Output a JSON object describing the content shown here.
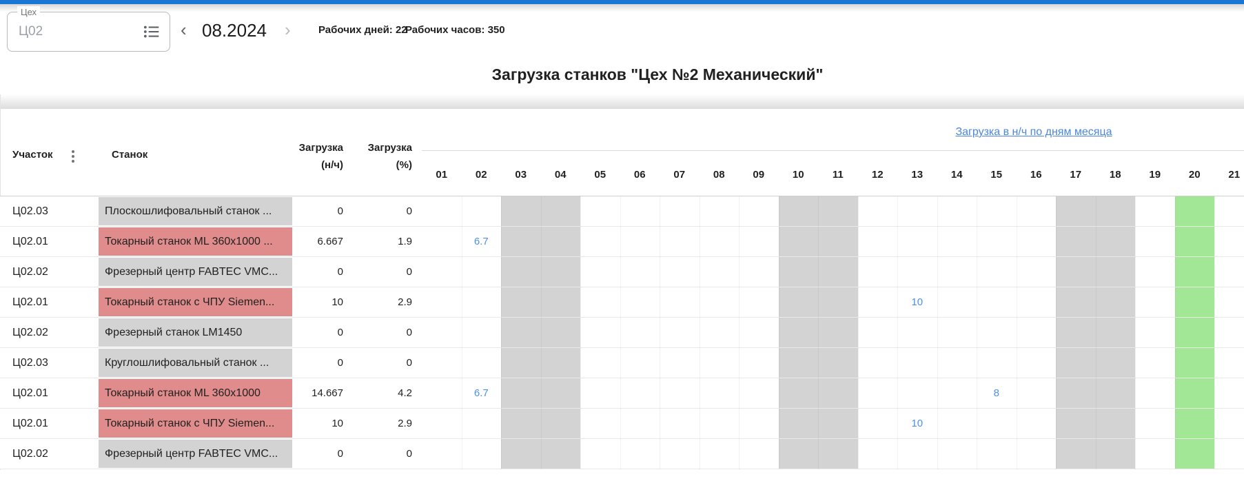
{
  "filter": {
    "label": "Цех",
    "value": "Ц02"
  },
  "toolbar": {
    "prev_icon": "‹",
    "next_icon": "›",
    "month": "08.2024",
    "working_days": "Рабочих дней: 22",
    "working_hours": "Рабочих часов: 350"
  },
  "title": "Загрузка станков \"Цех №2 Механический\"",
  "table": {
    "headers": {
      "section": "Участок",
      "machine": "Станок",
      "load_nh_line1": "Загрузка",
      "load_nh_line2": "(н/ч)",
      "load_pct_line1": "Загрузка",
      "load_pct_line2": "(%)"
    },
    "days_link": "Загрузка в н/ч по дням месяца",
    "days": [
      "01",
      "02",
      "03",
      "04",
      "05",
      "06",
      "07",
      "08",
      "09",
      "10",
      "11",
      "12",
      "13",
      "14",
      "15",
      "16",
      "17",
      "18",
      "19",
      "20",
      "21"
    ],
    "weekend_days": [
      "03",
      "04",
      "10",
      "11",
      "17",
      "18"
    ],
    "today_day": "20",
    "rows": [
      {
        "section": "Ц02.03",
        "machine": "Плоскошлифовальный станок ...",
        "status": "idle",
        "load_nh": "0",
        "load_pct": "0",
        "day_values": {}
      },
      {
        "section": "Ц02.01",
        "machine": "Токарный станок ML 360x1000 ...",
        "status": "loaded",
        "load_nh": "6.667",
        "load_pct": "1.9",
        "day_values": {
          "02": "6.7"
        }
      },
      {
        "section": "Ц02.02",
        "machine": "Фрезерный центр FABTEC VMC...",
        "status": "idle",
        "load_nh": "0",
        "load_pct": "0",
        "day_values": {}
      },
      {
        "section": "Ц02.01",
        "machine": "Токарный станок с ЧПУ Siemen...",
        "status": "loaded",
        "load_nh": "10",
        "load_pct": "2.9",
        "day_values": {
          "13": "10"
        }
      },
      {
        "section": "Ц02.02",
        "machine": "Фрезерный станок LM1450",
        "status": "idle",
        "load_nh": "0",
        "load_pct": "0",
        "day_values": {}
      },
      {
        "section": "Ц02.03",
        "machine": "Круглошлифовальный станок ...",
        "status": "idle",
        "load_nh": "0",
        "load_pct": "0",
        "day_values": {}
      },
      {
        "section": "Ц02.01",
        "machine": "Токарный станок ML 360x1000",
        "status": "loaded",
        "load_nh": "14.667",
        "load_pct": "4.2",
        "day_values": {
          "02": "6.7",
          "15": "8"
        }
      },
      {
        "section": "Ц02.01",
        "machine": "Токарный станок с ЧПУ Siemen...",
        "status": "loaded",
        "load_nh": "10",
        "load_pct": "2.9",
        "day_values": {
          "13": "10"
        }
      },
      {
        "section": "Ц02.02",
        "machine": "Фрезерный центр FABTEC VMC...",
        "status": "idle",
        "load_nh": "0",
        "load_pct": "0",
        "day_values": {}
      }
    ]
  },
  "colors": {
    "topbar_blue": "#1976d2",
    "link_blue": "#4a86e0",
    "value_blue": "#4a90f2",
    "loaded_red": "#e18c8c",
    "idle_gray": "#d3d3d3",
    "weekend_gray": "#d3d3d3",
    "today_green": "#a1e796"
  }
}
